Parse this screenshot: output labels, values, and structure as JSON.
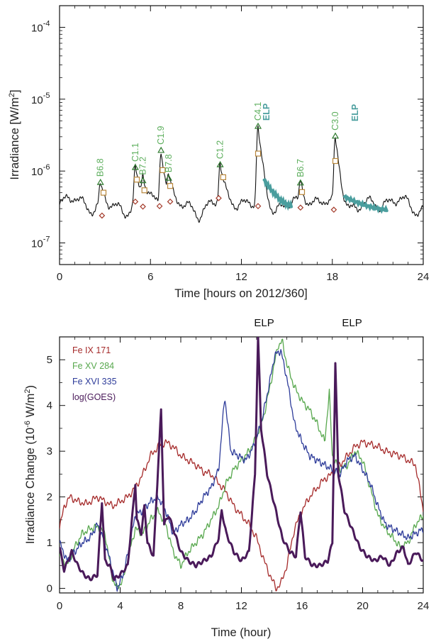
{
  "colors": {
    "black": "#111111",
    "flare_label": "#5cae5c",
    "elp": "#4a9e9e",
    "triangle": "#2f7a2f",
    "square": "#b8863a",
    "diamond": "#a33a2a",
    "fe_ix": "#a52a2a",
    "fe_xv": "#58a84e",
    "fe_xvi": "#2e3c9a",
    "goes": "#4a1a5a"
  },
  "chart_data": [
    {
      "type": "line",
      "xlabel": "Time [hours on 2012/360]",
      "ylabel_pre": "Irradiance [W/m",
      "ylabel_sup": "2",
      "ylabel_post": "]",
      "xlim": [
        0,
        24
      ],
      "ylim": [
        5e-08,
        0.0002
      ],
      "log_y": true,
      "x_ticks": [
        "0",
        "6",
        "12",
        "18",
        "24"
      ],
      "y_ticks": [
        {
          "value": 1e-07,
          "base": "10",
          "exp": "-7"
        },
        {
          "value": 1e-06,
          "base": "10",
          "exp": "-6"
        },
        {
          "value": 1e-05,
          "base": "10",
          "exp": "-5"
        },
        {
          "value": 0.0001,
          "base": "10",
          "exp": "-4"
        }
      ],
      "flares": [
        {
          "label": "B6.8",
          "t": 2.7,
          "peak": 6.8e-07
        },
        {
          "label": "C1.1",
          "t": 5.0,
          "peak": 1.1e-06
        },
        {
          "label": "B7.2",
          "t": 5.5,
          "peak": 7.2e-07
        },
        {
          "label": "C1.9",
          "t": 6.7,
          "peak": 1.9e-06
        },
        {
          "label": "B7.8",
          "t": 7.2,
          "peak": 7.8e-07
        },
        {
          "label": "C1.2",
          "t": 10.6,
          "peak": 1.2e-06
        },
        {
          "label": "C4.1",
          "t": 13.1,
          "peak": 4.1e-06
        },
        {
          "label": "B6.7",
          "t": 15.9,
          "peak": 6.7e-07
        },
        {
          "label": "C3.0",
          "t": 18.2,
          "peak": 3e-06
        }
      ],
      "elp_labels": [
        {
          "label": "ELP",
          "t": 13.5
        },
        {
          "label": "ELP",
          "t": 19.5
        }
      ],
      "squares": [
        {
          "t": 2.9,
          "v": 5e-07
        },
        {
          "t": 5.1,
          "v": 7.6e-07
        },
        {
          "t": 5.6,
          "v": 5.4e-07
        },
        {
          "t": 6.8,
          "v": 1.03e-06
        },
        {
          "t": 7.3,
          "v": 6.2e-07
        },
        {
          "t": 10.8,
          "v": 8.2e-07
        },
        {
          "t": 13.1,
          "v": 1.75e-06
        },
        {
          "t": 16.0,
          "v": 5.1e-07
        },
        {
          "t": 18.2,
          "v": 1.38e-06
        }
      ],
      "diamonds": [
        {
          "t": 2.8,
          "v": 2.4e-07
        },
        {
          "t": 5.0,
          "v": 3.75e-07
        },
        {
          "t": 5.5,
          "v": 3.2e-07
        },
        {
          "t": 6.6,
          "v": 3.25e-07
        },
        {
          "t": 7.3,
          "v": 3.75e-07
        },
        {
          "t": 10.5,
          "v": 4.2e-07
        },
        {
          "t": 13.1,
          "v": 3.25e-07
        },
        {
          "t": 15.9,
          "v": 3.1e-07
        },
        {
          "t": 18.1,
          "v": 2.9e-07
        }
      ],
      "elp_segments": [
        {
          "t_start": 13.5,
          "t_end": 15.3,
          "v_start": 7.5e-07,
          "v_end": 3.3e-07
        },
        {
          "t_start": 18.8,
          "t_end": 21.6,
          "v_start": 4.4e-07,
          "v_end": 2.9e-07
        }
      ]
    },
    {
      "type": "line",
      "xlabel": "Time (hour)",
      "ylabel_pre": "Irradiance Change (10",
      "ylabel_sup": "-6",
      "ylabel_post": " W/m",
      "ylabel_sup2": "2",
      "ylabel_end": ")",
      "xlim": [
        0,
        24
      ],
      "ylim": [
        -0.1,
        5.5
      ],
      "x_ticks": [
        "0",
        "4",
        "8",
        "12",
        "16",
        "20",
        "24"
      ],
      "y_ticks": [
        "0",
        "1",
        "2",
        "3",
        "4",
        "5"
      ],
      "annotations": [
        {
          "text": "ELP",
          "t": 13.5
        },
        {
          "text": "ELP",
          "t": 19.3
        }
      ],
      "series": [
        {
          "name": "Fe IX 171",
          "color_key": "fe_ix",
          "points": [
            [
              0,
              1.3
            ],
            [
              0.3,
              1.8
            ],
            [
              0.7,
              2.0
            ],
            [
              1.2,
              1.9
            ],
            [
              1.8,
              1.85
            ],
            [
              2.5,
              2.0
            ],
            [
              3.0,
              1.9
            ],
            [
              3.5,
              1.8
            ],
            [
              4.0,
              1.9
            ],
            [
              4.5,
              2.0
            ],
            [
              5.0,
              2.2
            ],
            [
              5.5,
              2.5
            ],
            [
              6.0,
              2.9
            ],
            [
              6.5,
              3.1
            ],
            [
              7.0,
              3.2
            ],
            [
              7.5,
              3.1
            ],
            [
              8.0,
              2.9
            ],
            [
              8.5,
              2.8
            ],
            [
              9.0,
              2.7
            ],
            [
              9.5,
              2.55
            ],
            [
              10.0,
              2.5
            ],
            [
              10.5,
              2.3
            ],
            [
              11.0,
              2.1
            ],
            [
              11.5,
              1.8
            ],
            [
              12.0,
              1.6
            ],
            [
              12.5,
              1.4
            ],
            [
              13.0,
              1.1
            ],
            [
              13.5,
              0.6
            ],
            [
              14.0,
              0.2
            ],
            [
              14.3,
              0.0
            ],
            [
              14.6,
              0.1
            ],
            [
              15.0,
              0.5
            ],
            [
              15.5,
              1.3
            ],
            [
              16.0,
              1.7
            ],
            [
              16.5,
              2.0
            ],
            [
              17.0,
              2.2
            ],
            [
              17.5,
              2.4
            ],
            [
              18.0,
              2.5
            ],
            [
              18.5,
              2.7
            ],
            [
              19.0,
              2.9
            ],
            [
              19.5,
              3.1
            ],
            [
              20.0,
              3.2
            ],
            [
              20.5,
              3.15
            ],
            [
              21.0,
              3.1
            ],
            [
              21.5,
              3.0
            ],
            [
              22.0,
              2.95
            ],
            [
              22.5,
              2.9
            ],
            [
              23.0,
              2.8
            ],
            [
              23.5,
              2.7
            ],
            [
              24,
              1.7
            ]
          ]
        },
        {
          "name": "Fe XV 284",
          "color_key": "fe_xv",
          "points": [
            [
              0,
              0.7
            ],
            [
              0.5,
              0.5
            ],
            [
              1.0,
              0.9
            ],
            [
              1.5,
              1.2
            ],
            [
              2.0,
              1.3
            ],
            [
              2.5,
              1.35
            ],
            [
              3.0,
              1.2
            ],
            [
              3.5,
              0.2
            ],
            [
              3.8,
              0.0
            ],
            [
              4.2,
              0.2
            ],
            [
              4.6,
              0.8
            ],
            [
              5.0,
              1.3
            ],
            [
              5.5,
              1.2
            ],
            [
              6.0,
              1.5
            ],
            [
              6.5,
              1.7
            ],
            [
              7.0,
              1.4
            ],
            [
              7.5,
              0.8
            ],
            [
              8.0,
              0.5
            ],
            [
              8.5,
              0.8
            ],
            [
              9.0,
              1.0
            ],
            [
              9.5,
              1.2
            ],
            [
              10.0,
              1.5
            ],
            [
              10.5,
              1.8
            ],
            [
              11.0,
              2.3
            ],
            [
              11.5,
              2.6
            ],
            [
              12.0,
              2.8
            ],
            [
              12.5,
              3.0
            ],
            [
              13.0,
              3.3
            ],
            [
              13.5,
              3.8
            ],
            [
              14.0,
              4.6
            ],
            [
              14.4,
              5.3
            ],
            [
              14.7,
              5.4
            ],
            [
              15.0,
              4.9
            ],
            [
              15.5,
              4.4
            ],
            [
              16.0,
              4.1
            ],
            [
              16.5,
              3.9
            ],
            [
              17.0,
              3.6
            ],
            [
              17.5,
              3.2
            ],
            [
              17.8,
              4.3
            ],
            [
              18.0,
              2.9
            ],
            [
              18.5,
              2.6
            ],
            [
              19.0,
              2.7
            ],
            [
              19.5,
              3.0
            ],
            [
              20.0,
              2.8
            ],
            [
              20.5,
              2.2
            ],
            [
              21.0,
              1.6
            ],
            [
              21.5,
              1.3
            ],
            [
              22.0,
              1.1
            ],
            [
              22.5,
              0.9
            ],
            [
              23.0,
              1.0
            ],
            [
              23.5,
              1.4
            ],
            [
              24,
              1.6
            ]
          ]
        },
        {
          "name": "Fe XVI 335",
          "color_key": "fe_xvi",
          "points": [
            [
              0,
              1.0
            ],
            [
              0.5,
              0.6
            ],
            [
              1.0,
              0.8
            ],
            [
              1.5,
              1.0
            ],
            [
              2.0,
              1.1
            ],
            [
              2.5,
              1.4
            ],
            [
              3.0,
              1.0
            ],
            [
              3.5,
              0.4
            ],
            [
              3.8,
              0.0
            ],
            [
              4.2,
              0.3
            ],
            [
              4.6,
              0.9
            ],
            [
              5.0,
              1.6
            ],
            [
              5.5,
              1.7
            ],
            [
              6.0,
              1.9
            ],
            [
              6.5,
              2.0
            ],
            [
              7.0,
              1.7
            ],
            [
              7.5,
              1.2
            ],
            [
              8.0,
              1.4
            ],
            [
              8.5,
              1.5
            ],
            [
              9.0,
              1.7
            ],
            [
              9.5,
              2.0
            ],
            [
              10.0,
              2.2
            ],
            [
              10.5,
              2.6
            ],
            [
              10.9,
              4.2
            ],
            [
              11.3,
              3.0
            ],
            [
              11.8,
              2.9
            ],
            [
              12.3,
              2.8
            ],
            [
              12.8,
              3.1
            ],
            [
              13.3,
              3.6
            ],
            [
              13.8,
              4.4
            ],
            [
              14.2,
              5.1
            ],
            [
              14.6,
              5.2
            ],
            [
              15.0,
              4.6
            ],
            [
              15.5,
              3.6
            ],
            [
              16.0,
              3.2
            ],
            [
              16.5,
              2.9
            ],
            [
              17.0,
              2.8
            ],
            [
              17.5,
              2.7
            ],
            [
              18.0,
              2.6
            ],
            [
              18.5,
              2.5
            ],
            [
              19.0,
              2.8
            ],
            [
              19.5,
              2.9
            ],
            [
              20.0,
              2.6
            ],
            [
              20.5,
              2.3
            ],
            [
              21.0,
              1.8
            ],
            [
              21.5,
              1.4
            ],
            [
              22.0,
              1.3
            ],
            [
              22.5,
              1.2
            ],
            [
              23.0,
              1.1
            ],
            [
              23.5,
              1.2
            ],
            [
              24,
              1.3
            ]
          ]
        },
        {
          "name": "log(GOES)",
          "color_key": "goes",
          "points": [
            [
              0,
              0.9
            ],
            [
              0.3,
              0.4
            ],
            [
              0.8,
              0.8
            ],
            [
              1.2,
              0.5
            ],
            [
              1.6,
              0.3
            ],
            [
              2.0,
              0.2
            ],
            [
              2.5,
              0.3
            ],
            [
              2.8,
              1.9
            ],
            [
              3.0,
              0.6
            ],
            [
              3.3,
              0.5
            ],
            [
              3.6,
              0.2
            ],
            [
              4.0,
              0.3
            ],
            [
              4.5,
              0.5
            ],
            [
              5.0,
              2.3
            ],
            [
              5.1,
              1.5
            ],
            [
              5.4,
              1.2
            ],
            [
              5.6,
              1.8
            ],
            [
              5.8,
              1.0
            ],
            [
              6.2,
              0.7
            ],
            [
              6.7,
              3.9
            ],
            [
              6.9,
              1.4
            ],
            [
              7.2,
              1.6
            ],
            [
              7.6,
              1.2
            ],
            [
              8.0,
              0.8
            ],
            [
              8.5,
              0.6
            ],
            [
              9.0,
              0.5
            ],
            [
              9.5,
              0.6
            ],
            [
              10.0,
              0.7
            ],
            [
              10.5,
              1.1
            ],
            [
              10.7,
              1.7
            ],
            [
              11.0,
              1.2
            ],
            [
              11.5,
              0.8
            ],
            [
              12.0,
              0.6
            ],
            [
              12.5,
              0.8
            ],
            [
              12.9,
              2.5
            ],
            [
              13.1,
              5.5
            ],
            [
              13.3,
              3.5
            ],
            [
              13.7,
              2.5
            ],
            [
              14.2,
              1.8
            ],
            [
              14.7,
              1.1
            ],
            [
              15.2,
              0.8
            ],
            [
              15.6,
              0.7
            ],
            [
              15.9,
              1.7
            ],
            [
              16.2,
              0.7
            ],
            [
              16.7,
              0.5
            ],
            [
              17.2,
              0.5
            ],
            [
              17.7,
              0.6
            ],
            [
              18.0,
              1.0
            ],
            [
              18.2,
              4.9
            ],
            [
              18.4,
              2.5
            ],
            [
              18.8,
              1.7
            ],
            [
              19.3,
              1.3
            ],
            [
              19.8,
              0.9
            ],
            [
              20.3,
              0.7
            ],
            [
              20.8,
              0.6
            ],
            [
              21.3,
              0.7
            ],
            [
              21.8,
              0.5
            ],
            [
              22.3,
              0.8
            ],
            [
              22.7,
              0.9
            ],
            [
              23.0,
              0.5
            ],
            [
              23.5,
              0.8
            ],
            [
              24,
              0.6
            ]
          ]
        }
      ]
    }
  ]
}
